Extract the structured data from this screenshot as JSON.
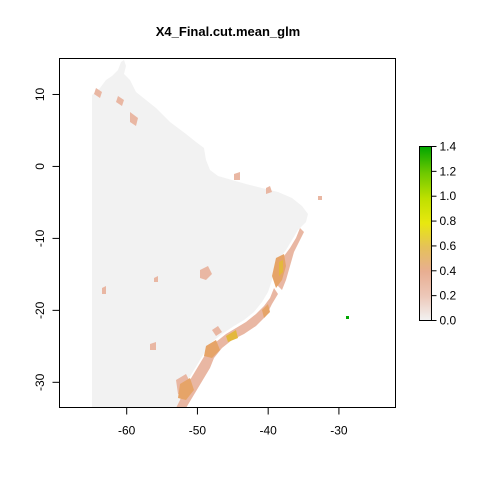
{
  "map_title": "X4_Final.cut.mean_glm",
  "axes": {
    "x_ticks": [
      -60,
      -50,
      -40,
      -30
    ],
    "x_tick_labels": [
      "-60",
      "-50",
      "-40",
      "-30"
    ],
    "y_ticks": [
      10,
      0,
      -10,
      -20,
      -30
    ],
    "y_tick_labels": [
      "10",
      "0",
      "-10",
      "-20",
      "-30"
    ],
    "xlim": [
      -69.5,
      -22
    ],
    "ylim": [
      -33.5,
      15
    ]
  },
  "legend": {
    "breaks": [
      0.0,
      0.2,
      0.4,
      0.6,
      0.8,
      1.0,
      1.2,
      1.4
    ],
    "labels": [
      "0.0",
      "0.2",
      "0.4",
      "0.6",
      "0.8",
      "1.0",
      "1.2",
      "1.4"
    ],
    "colors": [
      "#f2f2f2",
      "#edc8b9",
      "#e8ae92",
      "#e5c15a",
      "#e8e80f",
      "#bfe000",
      "#6dc800",
      "#00a600"
    ]
  },
  "colors": {
    "land_background": "#f2f2f2",
    "coastal_low": "#e9b7a3",
    "coastal_mid": "#e6a468",
    "coastal_high": "#e3b83d",
    "island_point": "#00a600"
  }
}
